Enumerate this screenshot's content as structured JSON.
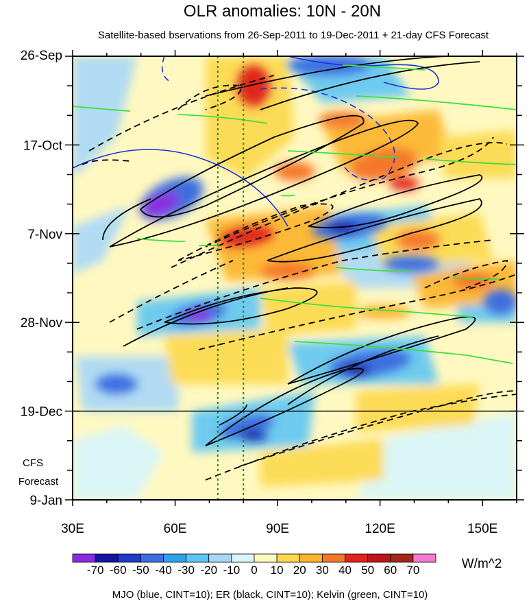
{
  "chart_data": {
    "type": "heatmap",
    "title": "OLR anomalies: 10N - 20N",
    "subtitle": "Satellite-based bservations from 26-Sep-2011 to 19-Dec-2011 + 21-day CFS Forecast",
    "x_axis": {
      "range": [
        30,
        160
      ],
      "ticks": [
        {
          "value": 30,
          "label": "30E"
        },
        {
          "value": 60,
          "label": "60E"
        },
        {
          "value": 90,
          "label": "90E"
        },
        {
          "value": 120,
          "label": "120E"
        },
        {
          "value": 150,
          "label": "150E"
        }
      ]
    },
    "y_axis": {
      "range_days": [
        0,
        105
      ],
      "direction": "downward",
      "ticks": [
        {
          "day": 0,
          "label": "26-Sep"
        },
        {
          "day": 21,
          "label": "17-Oct"
        },
        {
          "day": 42,
          "label": "7-Nov"
        },
        {
          "day": 63,
          "label": "28-Nov"
        },
        {
          "day": 84,
          "label": "19-Dec"
        },
        {
          "day": 105,
          "label": "9-Jan"
        }
      ]
    },
    "forecast": {
      "start_day": 84,
      "label_line1": "CFS",
      "label_line2": "Forecast"
    },
    "reference_lines_lon": [
      72.5,
      80
    ],
    "colorbar": {
      "unit": "W/m^2",
      "labels": [
        "-70",
        "-60",
        "-50",
        "-40",
        "-30",
        "-20",
        "-10",
        "0",
        "10",
        "20",
        "30",
        "40",
        "50",
        "60",
        "70"
      ],
      "colors": [
        "#8b2be0",
        "#1414a0",
        "#1c3ccc",
        "#3c6ee0",
        "#2ea2e8",
        "#5ec6f4",
        "#a8d8f8",
        "#d8f6fc",
        "#fff8c0",
        "#fcd84c",
        "#fcb42c",
        "#f4782c",
        "#e0261c",
        "#c0141c",
        "#a0281c",
        "#f47ad0"
      ]
    },
    "footer": "MJO (blue, CINT=10); ER (black, CINT=10); Kelvin (green, CINT=10)",
    "features": [
      {
        "kind": "neg",
        "lon": 60,
        "day": 34,
        "value": -70
      },
      {
        "kind": "neg",
        "lon": 68,
        "day": 61,
        "value": -70
      },
      {
        "kind": "neg",
        "lon": 112,
        "day": 40,
        "value": -60
      },
      {
        "kind": "neg",
        "lon": 118,
        "day": 72,
        "value": -60
      },
      {
        "kind": "neg",
        "lon": 82,
        "day": 89,
        "value": -60
      },
      {
        "kind": "neg",
        "lon": 108,
        "day": 3,
        "value": -50
      },
      {
        "kind": "pos",
        "lon": 82,
        "day": 7,
        "value": 50
      },
      {
        "kind": "pos",
        "lon": 82,
        "day": 43,
        "value": 50
      },
      {
        "kind": "pos",
        "lon": 118,
        "day": 30,
        "value": 50
      },
      {
        "kind": "pos",
        "lon": 124,
        "day": 42,
        "value": 40
      },
      {
        "kind": "pos",
        "lon": 94,
        "day": 54,
        "value": 30
      },
      {
        "kind": "pos",
        "lon": 145,
        "day": 55,
        "value": 30
      }
    ]
  }
}
